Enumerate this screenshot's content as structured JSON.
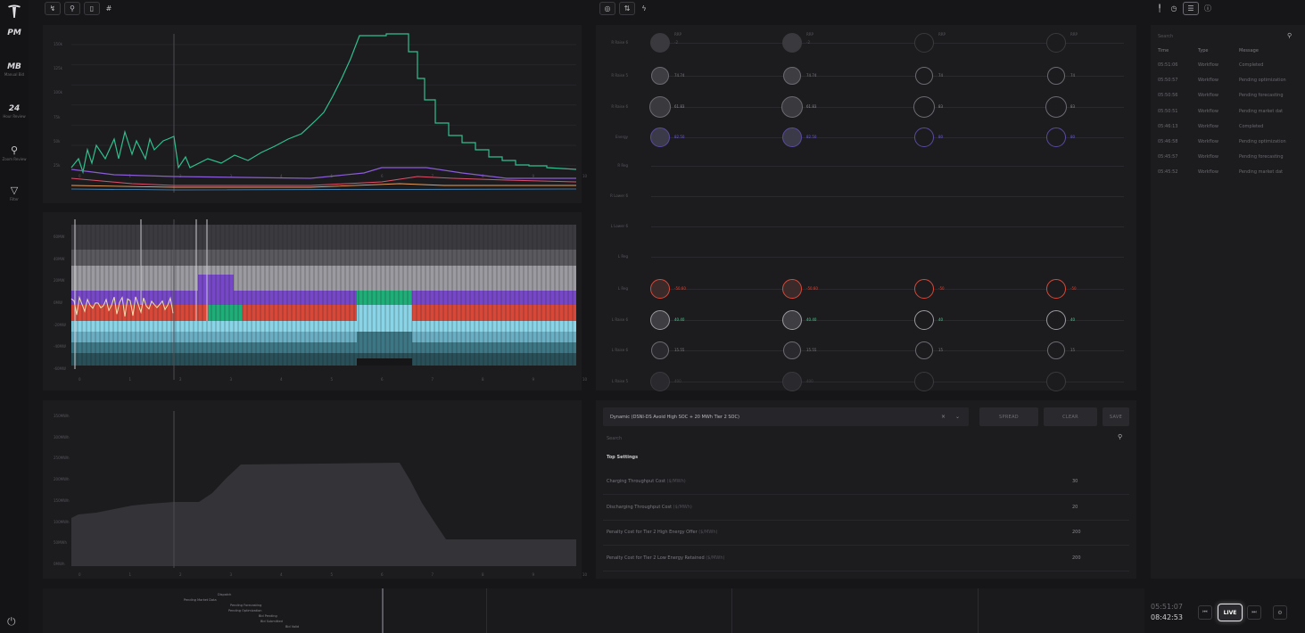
{
  "rail": {
    "items": [
      {
        "big": "PM",
        "label": ""
      },
      {
        "big": "MB",
        "label": "Manual Bid"
      },
      {
        "big": "24",
        "label": "Hour Review"
      },
      {
        "icon": "search-icon",
        "label": "Zoom Review"
      },
      {
        "icon": "filter-icon",
        "label": "Filter"
      }
    ]
  },
  "toolbar": {
    "left_hash": "#"
  },
  "grid": {
    "col_headers": [
      "RRP",
      "RRP",
      "RRP",
      "RRP"
    ],
    "rows": [
      {
        "label": "R Raise 6",
        "vals": [
          "-2",
          "-2",
          "",
          ""
        ]
      },
      {
        "label": "R Raise 5",
        "vals": [
          "74.74",
          "74.74",
          "74",
          "74"
        ]
      },
      {
        "label": "R Raise 6",
        "vals": [
          "61.83",
          "61.83",
          "83",
          "83"
        ]
      },
      {
        "label": "Energy",
        "vals": [
          "82.50",
          "82.50",
          "80",
          "80"
        ]
      },
      {
        "label": "R Reg",
        "vals": []
      },
      {
        "label": "R Lower 6",
        "vals": []
      },
      {
        "label": "L Lower 6",
        "vals": []
      },
      {
        "label": "L Reg",
        "vals": []
      },
      {
        "label": "L Reg",
        "vals": [
          "-50.60",
          "-50.60",
          "-50",
          "-50"
        ]
      },
      {
        "label": "L Raise 6",
        "vals": [
          "40.40",
          "40.40",
          "40",
          "40"
        ]
      },
      {
        "label": "L Raise 6",
        "vals": [
          "15.55",
          "15.55",
          "15",
          "15"
        ]
      },
      {
        "label": "L Raise 5",
        "vals": [
          "400",
          "400",
          "",
          ""
        ]
      }
    ]
  },
  "settings": {
    "strategy": "Dynamic (DSNI-DS Avoid High SOC + 20 MWh Tier 2 SOC)",
    "apply": "SPREAD",
    "clear": "CLEAR",
    "save": "SAVE",
    "search_placeholder": "Search",
    "section": "Top Settings",
    "rows": [
      {
        "name": "Charging Throughput Cost",
        "unit": "($/MWh)",
        "value": "30"
      },
      {
        "name": "Discharging Throughput Cost",
        "unit": "($/MWh)",
        "value": "20"
      },
      {
        "name": "Penalty Cost for Tier 2 High Energy Offer",
        "unit": "($/MWh)",
        "value": "200"
      },
      {
        "name": "Penalty Cost for Tier 2 Low Energy Retained",
        "unit": "($/MWh)",
        "value": "200"
      }
    ]
  },
  "events": {
    "search_placeholder": "Search",
    "headers": [
      "Time",
      "Type",
      "Message"
    ],
    "rows": [
      {
        "time": "05:51:06",
        "type": "Workflow",
        "msg": "Completed"
      },
      {
        "time": "05:50:57",
        "type": "Workflow",
        "msg": "Pending optimization"
      },
      {
        "time": "05:50:56",
        "type": "Workflow",
        "msg": "Pending forecasting"
      },
      {
        "time": "05:50:51",
        "type": "Workflow",
        "msg": "Pending market dat"
      },
      {
        "time": "05:46:13",
        "type": "Workflow",
        "msg": "Completed"
      },
      {
        "time": "05:46:58",
        "type": "Workflow",
        "msg": "Pending optimization"
      },
      {
        "time": "05:45:57",
        "type": "Workflow",
        "msg": "Pending forecasting"
      },
      {
        "time": "05:45:52",
        "type": "Workflow",
        "msg": "Pending market dat"
      }
    ]
  },
  "timeline": {
    "labels": [
      "Dispatch",
      "Pending Market Data",
      "Pending Forecasting",
      "Pending Optimization",
      "Bid Pending",
      "Bid Submitted",
      "Bid Valid"
    ]
  },
  "clock": {
    "t1": "05:51:07",
    "t2": "08:42:53"
  },
  "playback": {
    "live": "LIVE"
  },
  "chart1": {
    "yticks": [
      "150k",
      "125k",
      "100k",
      "75k",
      "50k",
      "25k"
    ],
    "xticks": [
      "0",
      "1",
      "2",
      "3",
      "4",
      "5",
      "6",
      "7",
      "8",
      "9",
      "10"
    ]
  },
  "chart2": {
    "yticks": [
      "60MW",
      "40MW",
      "20MW",
      "0MW",
      "-20MW",
      "-40MW",
      "-60MW"
    ],
    "xticks": [
      "0",
      "1",
      "2",
      "3",
      "4",
      "5",
      "6",
      "7",
      "8",
      "9",
      "10"
    ]
  },
  "chart3": {
    "yticks": [
      "350MWh",
      "300MWh",
      "250MWh",
      "200MWh",
      "150MWh",
      "100MWh",
      "50MWh",
      "0MWh"
    ],
    "xticks": [
      "0",
      "1",
      "2",
      "3",
      "4",
      "5",
      "6",
      "7",
      "8",
      "9",
      "10"
    ]
  }
}
